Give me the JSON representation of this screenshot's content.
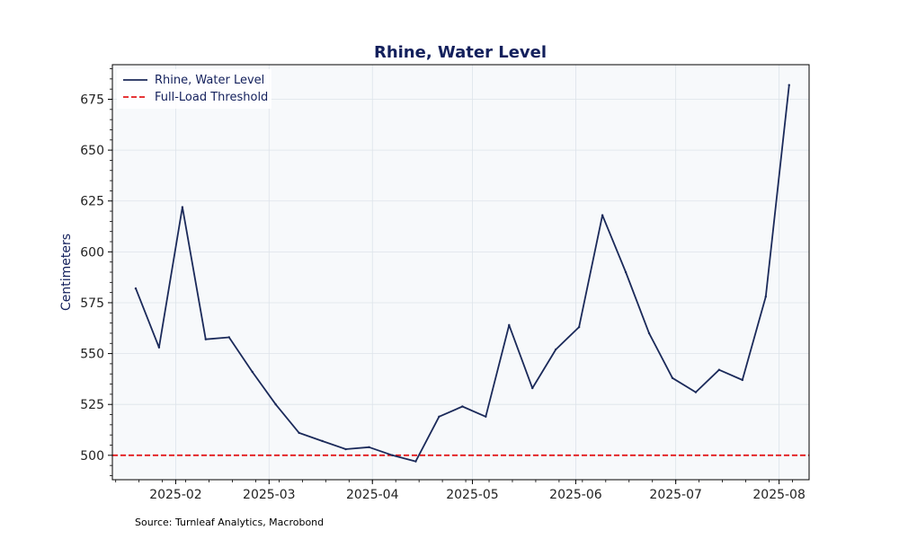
{
  "chart_data": {
    "type": "line",
    "title": "Rhine, Water Level",
    "xlabel": "",
    "ylabel": "Centimeters",
    "x_tick_labels": [
      "2025-02",
      "2025-03",
      "2025-04",
      "2025-05",
      "2025-06",
      "2025-07",
      "2025-08"
    ],
    "y_ticks": [
      500,
      525,
      550,
      575,
      600,
      625,
      650,
      675
    ],
    "xlim": [
      "2025-01-13",
      "2025-08-10"
    ],
    "ylim": [
      488,
      692
    ],
    "grid": true,
    "legend_position": "top-left",
    "series": [
      {
        "name": "Rhine, Water Level",
        "color": "#1b2a5a",
        "style": "solid",
        "points": [
          {
            "x": "2025-01-20",
            "y": 582
          },
          {
            "x": "2025-01-27",
            "y": 553
          },
          {
            "x": "2025-02-03",
            "y": 622
          },
          {
            "x": "2025-02-10",
            "y": 557
          },
          {
            "x": "2025-02-17",
            "y": 558
          },
          {
            "x": "2025-02-24",
            "y": 541
          },
          {
            "x": "2025-03-03",
            "y": 525
          },
          {
            "x": "2025-03-10",
            "y": 511
          },
          {
            "x": "2025-03-17",
            "y": 507
          },
          {
            "x": "2025-03-24",
            "y": 503
          },
          {
            "x": "2025-03-31",
            "y": 504
          },
          {
            "x": "2025-04-07",
            "y": 500
          },
          {
            "x": "2025-04-14",
            "y": 497
          },
          {
            "x": "2025-04-21",
            "y": 519
          },
          {
            "x": "2025-04-28",
            "y": 524
          },
          {
            "x": "2025-05-05",
            "y": 519
          },
          {
            "x": "2025-05-12",
            "y": 564
          },
          {
            "x": "2025-05-19",
            "y": 533
          },
          {
            "x": "2025-05-26",
            "y": 552
          },
          {
            "x": "2025-06-02",
            "y": 563
          },
          {
            "x": "2025-06-09",
            "y": 618
          },
          {
            "x": "2025-06-16",
            "y": 590
          },
          {
            "x": "2025-06-23",
            "y": 560
          },
          {
            "x": "2025-06-30",
            "y": 538
          },
          {
            "x": "2025-07-07",
            "y": 531
          },
          {
            "x": "2025-07-14",
            "y": 542
          },
          {
            "x": "2025-07-21",
            "y": 537
          },
          {
            "x": "2025-07-28",
            "y": 578
          },
          {
            "x": "2025-08-04",
            "y": 682
          }
        ]
      },
      {
        "name": "Full-Load Threshold",
        "color": "#e31a1c",
        "style": "dashed",
        "value": 500
      }
    ]
  },
  "footer": {
    "source": "Source: Turnleaf Analytics, Macrobond"
  }
}
